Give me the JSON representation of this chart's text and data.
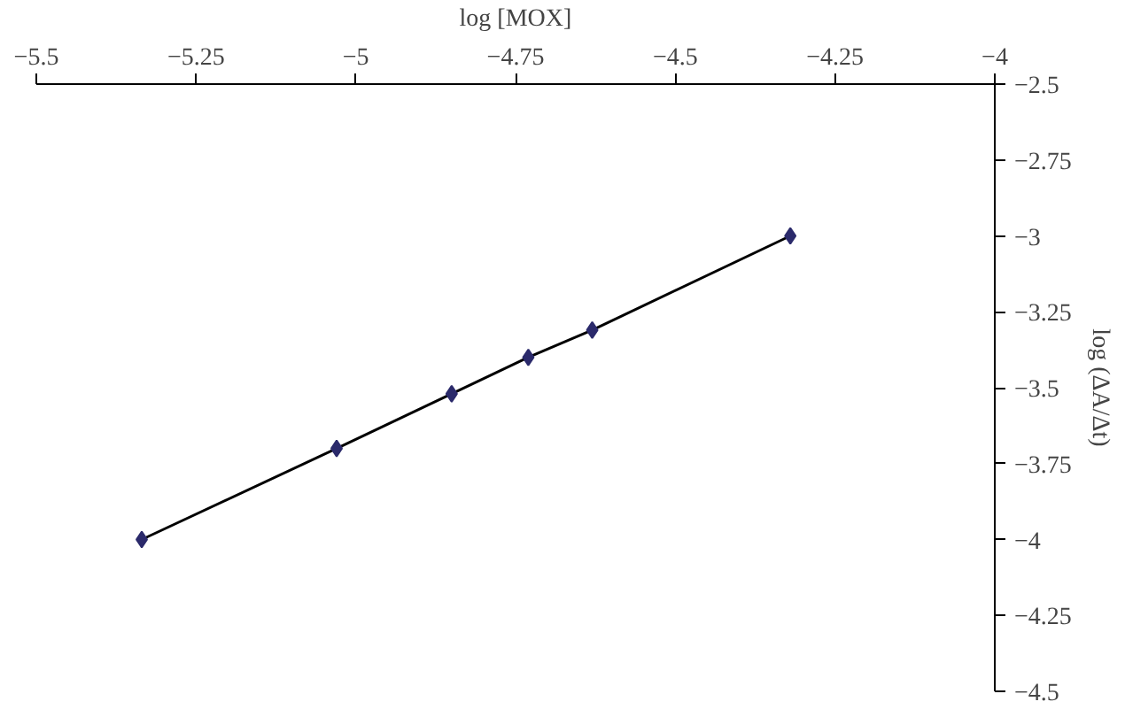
{
  "chart_data": {
    "type": "line",
    "xlabel": "log [MOX]",
    "ylabel": "log (ΔA/Δt)",
    "x": [
      -5.335,
      -5.03,
      -4.85,
      -4.73,
      -4.63,
      -4.32
    ],
    "series": [
      {
        "color": "#2b2a6b",
        "values": [
          -4.0,
          -3.7,
          -3.52,
          -3.4,
          -3.31,
          -3.0
        ]
      }
    ],
    "marker": "diamond",
    "line_style": "solid",
    "grid": false,
    "xlim": [
      -5.5,
      -4
    ],
    "ylim": [
      -4.5,
      -2.5
    ],
    "xticks": [
      {
        "value": -5.5,
        "label": "−5.5"
      },
      {
        "value": -5.25,
        "label": "−5.25"
      },
      {
        "value": -5,
        "label": "−5"
      },
      {
        "value": -4.75,
        "label": "−4.75"
      },
      {
        "value": -4.5,
        "label": "−4.5"
      },
      {
        "value": -4.25,
        "label": "−4.25"
      },
      {
        "value": -4,
        "label": "−4"
      }
    ],
    "yticks": [
      {
        "value": -2.5,
        "label": "−2.5"
      },
      {
        "value": -2.75,
        "label": "−2.75"
      },
      {
        "value": -3,
        "label": "−3"
      },
      {
        "value": -3.25,
        "label": "−3.25"
      },
      {
        "value": -3.5,
        "label": "−3.5"
      },
      {
        "value": -3.75,
        "label": "−3.75"
      },
      {
        "value": -4,
        "label": "−4"
      },
      {
        "value": -4.25,
        "label": "−4.25"
      },
      {
        "value": -4.5,
        "label": "−4.5"
      }
    ]
  }
}
